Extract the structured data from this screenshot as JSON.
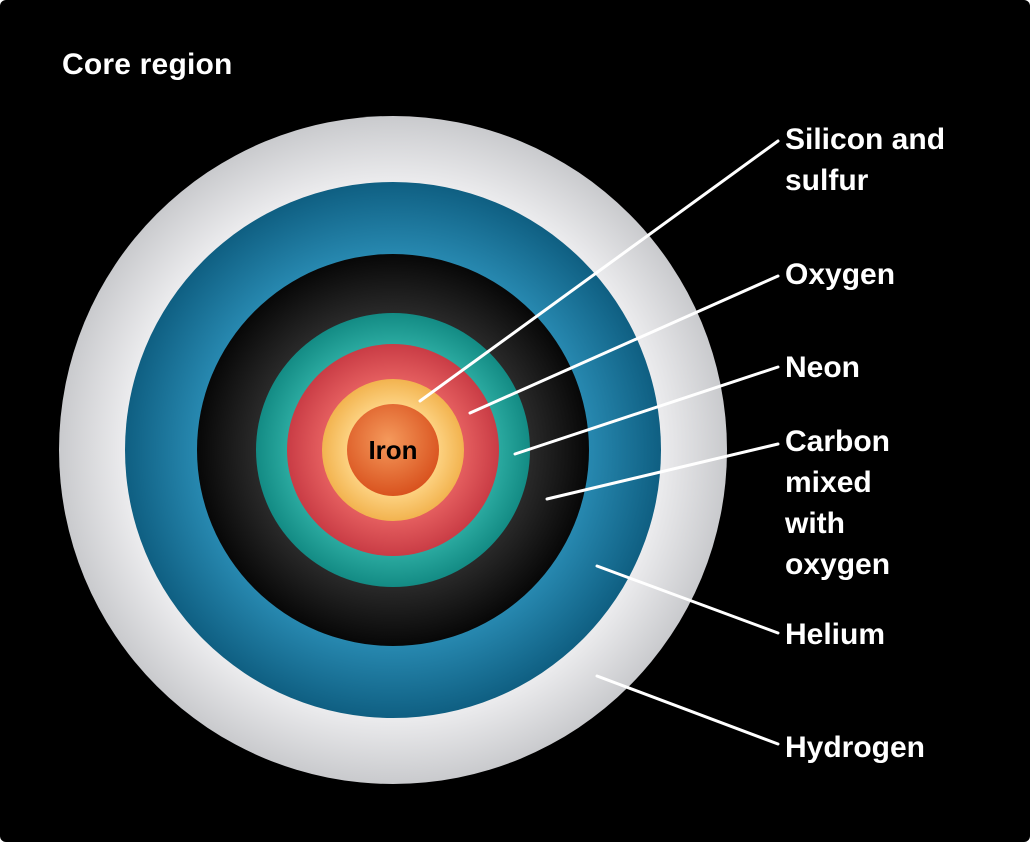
{
  "title": "Core region",
  "core_label": "Iron",
  "layers": [
    {
      "name": "Hydrogen",
      "color": "#d4d5d8"
    },
    {
      "name": "Helium",
      "color": "#1a7499"
    },
    {
      "name": "Carbon\nmixed\nwith\noxygen",
      "color": "#111111"
    },
    {
      "name": "Neon",
      "color": "#1ea59c"
    },
    {
      "name": "Oxygen",
      "color": "#d94a4f"
    },
    {
      "name": "Silicon and\nsulfur",
      "color": "#f6bd62"
    },
    {
      "name": "Iron",
      "color": "#e8652a"
    }
  ]
}
